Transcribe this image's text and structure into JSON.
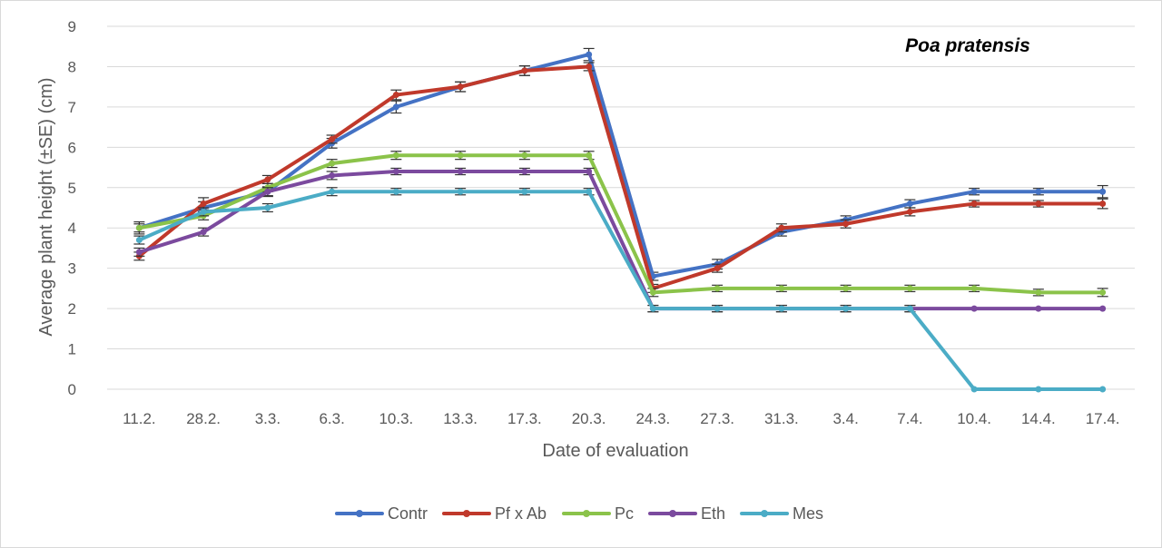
{
  "chart_data": {
    "type": "line",
    "annotation": "Poa pratensis",
    "xlabel": "Date of evaluation",
    "ylabel": "Average plant height (±SE) (cm)",
    "ylim": [
      0,
      9
    ],
    "yticks": [
      0,
      1,
      2,
      3,
      4,
      5,
      6,
      7,
      8,
      9
    ],
    "grid": "horizontal",
    "legend_position": "bottom",
    "error_bars": "±SE",
    "categories": [
      "11.2.",
      "28.2.",
      "3.3.",
      "6.3.",
      "10.3.",
      "13.3.",
      "17.3.",
      "20.3.",
      "24.3.",
      "27.3.",
      "31.3.",
      "3.4.",
      "7.4.",
      "10.4.",
      "14.4.",
      "17.4."
    ],
    "series": [
      {
        "name": "Contr",
        "color": "#4472C4",
        "values": [
          4.0,
          4.5,
          4.9,
          6.1,
          7.0,
          7.5,
          7.9,
          8.3,
          2.8,
          3.1,
          3.9,
          4.2,
          4.6,
          4.9,
          4.9,
          4.9
        ],
        "se": [
          0.15,
          0.15,
          0.12,
          0.12,
          0.15,
          0.12,
          0.12,
          0.15,
          0.1,
          0.12,
          0.1,
          0.1,
          0.1,
          0.08,
          0.08,
          0.15
        ]
      },
      {
        "name": "Pf x Ab",
        "color": "#C0392B",
        "values": [
          3.3,
          4.6,
          5.2,
          6.2,
          7.3,
          7.5,
          7.9,
          8.0,
          2.5,
          3.0,
          4.0,
          4.1,
          4.4,
          4.6,
          4.6,
          4.6
        ],
        "se": [
          0.1,
          0.15,
          0.1,
          0.1,
          0.12,
          0.12,
          0.12,
          0.1,
          0.1,
          0.1,
          0.1,
          0.1,
          0.1,
          0.08,
          0.08,
          0.12
        ]
      },
      {
        "name": "Pc",
        "color": "#8BC34A",
        "values": [
          4.0,
          4.3,
          5.0,
          5.6,
          5.8,
          5.8,
          5.8,
          5.8,
          2.4,
          2.5,
          2.5,
          2.5,
          2.5,
          2.5,
          2.4,
          2.4
        ],
        "se": [
          0.1,
          0.1,
          0.1,
          0.1,
          0.1,
          0.1,
          0.1,
          0.1,
          0.1,
          0.08,
          0.08,
          0.08,
          0.08,
          0.08,
          0.08,
          0.1
        ]
      },
      {
        "name": "Eth",
        "color": "#7B4A9E",
        "values": [
          3.4,
          3.9,
          4.9,
          5.3,
          5.4,
          5.4,
          5.4,
          5.4,
          2.0,
          2.0,
          2.0,
          2.0,
          2.0,
          2.0,
          2.0,
          2.0
        ],
        "se": [
          0.1,
          0.1,
          0.1,
          0.1,
          0.08,
          0.08,
          0.08,
          0.08,
          0.08,
          0.08,
          0.08,
          0.08,
          0.08,
          0.0,
          0.0,
          0.0
        ]
      },
      {
        "name": "Mes",
        "color": "#4BACC6",
        "values": [
          3.7,
          4.4,
          4.5,
          4.9,
          4.9,
          4.9,
          4.9,
          4.9,
          2.0,
          2.0,
          2.0,
          2.0,
          2.0,
          0.0,
          0.0,
          0.0
        ],
        "se": [
          0.1,
          0.1,
          0.1,
          0.1,
          0.08,
          0.08,
          0.08,
          0.08,
          0.08,
          0.08,
          0.08,
          0.08,
          0.08,
          0.0,
          0.0,
          0.0
        ]
      }
    ]
  }
}
